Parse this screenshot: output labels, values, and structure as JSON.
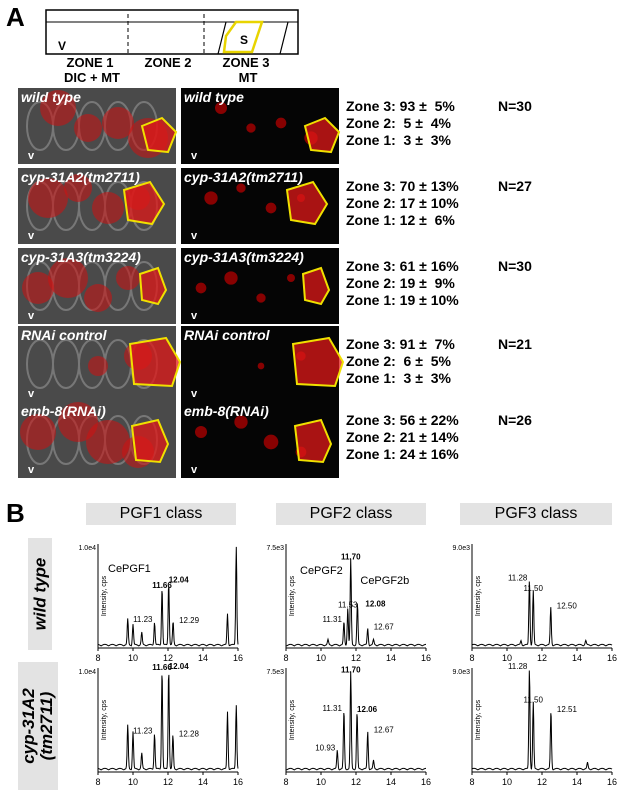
{
  "panel_a": {
    "letter": "A",
    "schematic": {
      "v_label": "V",
      "s_label": "S",
      "zones": [
        "ZONE 1",
        "ZONE 2",
        "ZONE 3"
      ],
      "sub_labels": [
        "DIC + MT",
        "MT"
      ]
    },
    "rows": [
      {
        "dic_label": "wild type",
        "mt_label": "wild type",
        "v": "v",
        "stats": [
          "Zone 3: 93 ±  5%",
          "Zone 2:  5 ±  4%",
          "Zone 1:  3 ±  3%"
        ],
        "n": "N=30"
      },
      {
        "dic_label": "cyp-31A2(tm2711)",
        "mt_label": "cyp-31A2(tm2711)",
        "v": "v",
        "stats": [
          "Zone 3: 70 ± 13%",
          "Zone 2: 17 ± 10%",
          "Zone 1: 12 ±  6%"
        ],
        "n": "N=27"
      },
      {
        "dic_label": "cyp-31A3(tm3224)",
        "mt_label": "cyp-31A3(tm3224)",
        "v": "v",
        "stats": [
          "Zone 3: 61 ± 16%",
          "Zone 2: 19 ±  9%",
          "Zone 1: 19 ± 10%"
        ],
        "n": "N=30"
      },
      {
        "dic_label": "RNAi control",
        "mt_label": "RNAi control",
        "v": "v",
        "stats": [
          "Zone 3: 91 ±  7%",
          "Zone 2:  6 ±  5%",
          "Zone 1:  3 ±  3%"
        ],
        "n": "N=21"
      },
      {
        "dic_label": "emb-8(RNAi)",
        "mt_label": "emb-8(RNAi)",
        "v": "v",
        "stats": [
          "Zone 3: 56 ± 22%",
          "Zone 2: 21 ± 14%",
          "Zone 1: 24 ± 16%"
        ],
        "n": "N=26"
      }
    ]
  },
  "panel_b": {
    "letter": "B",
    "column_headers": [
      "PGF1 class",
      "PGF2 class",
      "PGF3 class"
    ],
    "row_headers": [
      "wild type",
      "cyp-31A2 (tm2711)"
    ],
    "ylabel": "Intensity, cps",
    "x_ticks": [
      "8",
      "10",
      "12",
      "14",
      "16"
    ]
  },
  "chart_data": [
    {
      "type": "line",
      "row": "wild type",
      "column": "PGF1 class",
      "ylabel": "Intensity, cps",
      "xlim": [
        8,
        16
      ],
      "y_max_label": "1.0e4",
      "compound_label": "CePGF1",
      "peaks": [
        {
          "x": 11.66,
          "label": "11.66",
          "bold": true
        },
        {
          "x": 12.04,
          "label": "12.04",
          "bold": true
        },
        {
          "x": 11.23,
          "label": "11.23"
        },
        {
          "x": 12.29,
          "label": "12.29"
        }
      ]
    },
    {
      "type": "line",
      "row": "wild type",
      "column": "PGF2 class",
      "ylabel": "Intensity, cps",
      "xlim": [
        8,
        16
      ],
      "y_max_label": "7.5e3",
      "compound_label": "CePGF2",
      "compound_label_2": "CePGF2b",
      "peaks": [
        {
          "x": 11.7,
          "label": "11.70",
          "bold": true
        },
        {
          "x": 11.53,
          "label": "11.53"
        },
        {
          "x": 12.08,
          "label": "12.08",
          "bold": true
        },
        {
          "x": 11.31,
          "label": "11.31"
        },
        {
          "x": 12.67,
          "label": "12.67"
        }
      ]
    },
    {
      "type": "line",
      "row": "wild type",
      "column": "PGF3 class",
      "ylabel": "Intensity, cps",
      "xlim": [
        8,
        16
      ],
      "y_max_label": "9.0e3",
      "peaks": [
        {
          "x": 11.28,
          "label": "11.28"
        },
        {
          "x": 11.5,
          "label": "11.50"
        },
        {
          "x": 12.5,
          "label": "12.50"
        }
      ]
    },
    {
      "type": "line",
      "row": "cyp-31A2 (tm2711)",
      "column": "PGF1 class",
      "ylabel": "Intensity, cps",
      "xlim": [
        8,
        16
      ],
      "y_max_label": "1.0e4",
      "peaks": [
        {
          "x": 11.66,
          "label": "11.66",
          "bold": true
        },
        {
          "x": 12.04,
          "label": "12.04",
          "bold": true
        },
        {
          "x": 11.23,
          "label": "11.23"
        },
        {
          "x": 12.28,
          "label": "12.28"
        }
      ]
    },
    {
      "type": "line",
      "row": "cyp-31A2 (tm2711)",
      "column": "PGF2 class",
      "ylabel": "Intensity, cps",
      "xlim": [
        8,
        16
      ],
      "y_max_label": "7.5e3",
      "peaks": [
        {
          "x": 11.7,
          "label": "11.70",
          "bold": true
        },
        {
          "x": 11.31,
          "label": "11.31"
        },
        {
          "x": 12.06,
          "label": "12.06",
          "bold": true
        },
        {
          "x": 12.67,
          "label": "12.67"
        },
        {
          "x": 10.93,
          "label": "10.93"
        }
      ]
    },
    {
      "type": "line",
      "row": "cyp-31A2 (tm2711)",
      "column": "PGF3 class",
      "ylabel": "Intensity, cps",
      "xlim": [
        8,
        16
      ],
      "y_max_label": "9.0e3",
      "peaks": [
        {
          "x": 11.28,
          "label": "11.28"
        },
        {
          "x": 11.5,
          "label": "11.50"
        },
        {
          "x": 12.51,
          "label": "12.51"
        }
      ]
    }
  ]
}
